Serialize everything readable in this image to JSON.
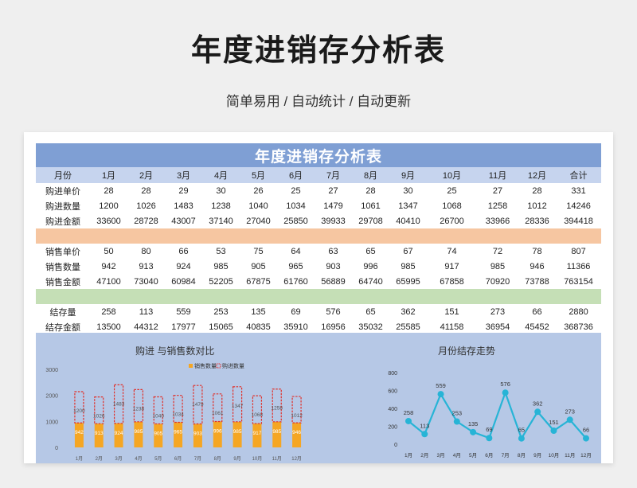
{
  "title": "年度进销存分析表",
  "subtitle": "简单易用 / 自动统计 / 自动更新",
  "sheet": {
    "banner": "年度进销存分析表",
    "headers": [
      "月份",
      "1月",
      "2月",
      "3月",
      "4月",
      "5月",
      "6月",
      "7月",
      "8月",
      "9月",
      "10月",
      "11月",
      "12月",
      "合计"
    ],
    "purchase_rows": [
      {
        "label": "购进单价",
        "values": [
          "28",
          "28",
          "29",
          "30",
          "26",
          "25",
          "27",
          "28",
          "30",
          "25",
          "27",
          "28",
          "331"
        ]
      },
      {
        "label": "购进数量",
        "values": [
          "1200",
          "1026",
          "1483",
          "1238",
          "1040",
          "1034",
          "1479",
          "1061",
          "1347",
          "1068",
          "1258",
          "1012",
          "14246"
        ]
      },
      {
        "label": "购进金额",
        "values": [
          "33600",
          "28728",
          "43007",
          "37140",
          "27040",
          "25850",
          "39933",
          "29708",
          "40410",
          "26700",
          "33966",
          "28336",
          "394418"
        ]
      }
    ],
    "sales_rows": [
      {
        "label": "销售单价",
        "values": [
          "50",
          "80",
          "66",
          "53",
          "75",
          "64",
          "63",
          "65",
          "67",
          "74",
          "72",
          "78",
          "807"
        ]
      },
      {
        "label": "销售数量",
        "values": [
          "942",
          "913",
          "924",
          "985",
          "905",
          "965",
          "903",
          "996",
          "985",
          "917",
          "985",
          "946",
          "11366"
        ]
      },
      {
        "label": "销售金额",
        "values": [
          "47100",
          "73040",
          "60984",
          "52205",
          "67875",
          "61760",
          "56889",
          "64740",
          "65995",
          "67858",
          "70920",
          "73788",
          "763154"
        ]
      }
    ],
    "stock_rows": [
      {
        "label": "结存量",
        "values": [
          "258",
          "113",
          "559",
          "253",
          "135",
          "69",
          "576",
          "65",
          "362",
          "151",
          "273",
          "66",
          "2880"
        ]
      },
      {
        "label": "结存金额",
        "values": [
          "13500",
          "44312",
          "17977",
          "15065",
          "40835",
          "35910",
          "16956",
          "35032",
          "25585",
          "41158",
          "36954",
          "45452",
          "368736"
        ]
      }
    ]
  },
  "chart_data": [
    {
      "type": "bar",
      "title": "购进 与销售数对比",
      "categories": [
        "1月",
        "2月",
        "3月",
        "4月",
        "5月",
        "6月",
        "7月",
        "8月",
        "9月",
        "10月",
        "11月",
        "12月"
      ],
      "series": [
        {
          "name": "销售数量",
          "values": [
            942,
            913,
            924,
            985,
            905,
            965,
            903,
            996,
            985,
            917,
            985,
            946
          ],
          "color": "#f5a623"
        },
        {
          "name": "购进数量",
          "values": [
            1200,
            1026,
            1483,
            1238,
            1040,
            1034,
            1479,
            1061,
            1347,
            1068,
            1258,
            1012
          ],
          "color": "#e0302a"
        }
      ],
      "ylim": [
        0,
        3000
      ],
      "yticks": [
        "0",
        "1000",
        "2000",
        "3000"
      ],
      "legend": "top-right"
    },
    {
      "type": "line",
      "title": "月份结存走势",
      "categories": [
        "1月",
        "2月",
        "3月",
        "4月",
        "5月",
        "6月",
        "7月",
        "8月",
        "9月",
        "10月",
        "11月",
        "12月"
      ],
      "values": [
        258,
        113,
        559,
        253,
        135,
        69,
        576,
        65,
        362,
        151,
        273,
        66
      ],
      "ylim": [
        0,
        800
      ],
      "yticks": [
        "0",
        "200",
        "400",
        "600",
        "800"
      ],
      "color": "#27b4d6"
    }
  ]
}
